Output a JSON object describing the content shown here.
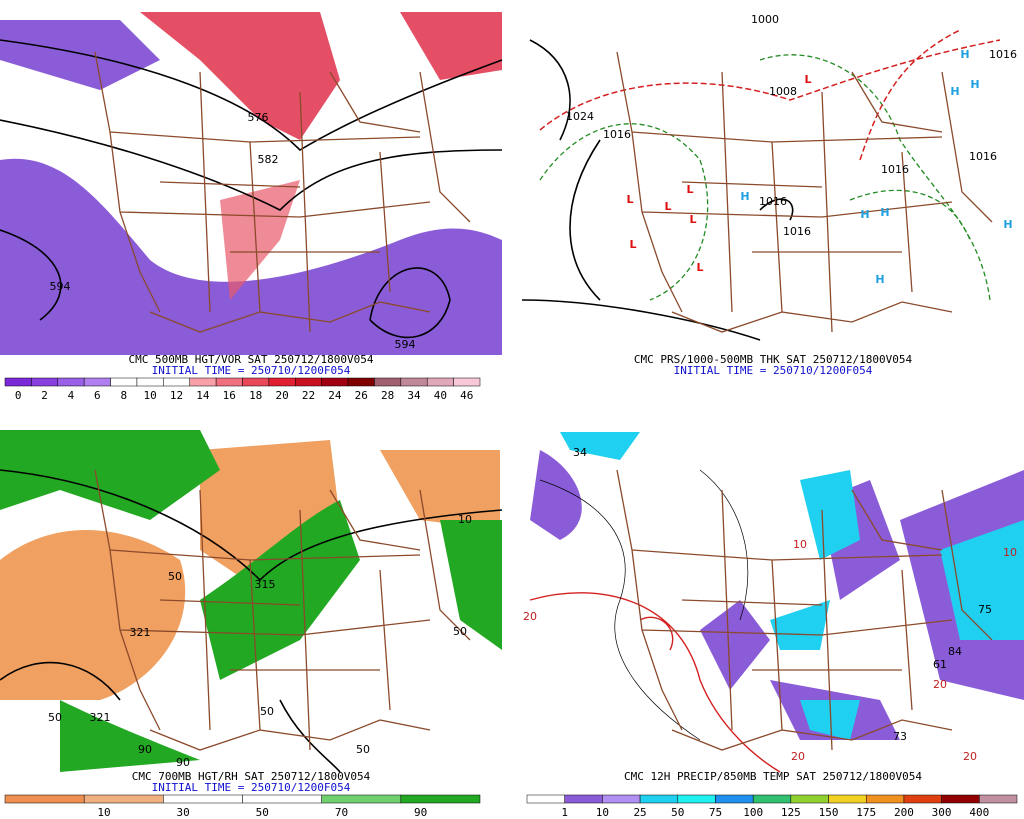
{
  "panels": [
    {
      "title": "CMC 500MB HGT/VOR SAT 250712/1800V054",
      "subtitle": "INITIAL TIME = 250710/1200F054",
      "colorbar": [
        0,
        2,
        4,
        6,
        8,
        10,
        12,
        14,
        16,
        18,
        20,
        22,
        24,
        26,
        28,
        34,
        40,
        46
      ],
      "map_labels": [
        "582",
        "576",
        "594",
        "594"
      ]
    },
    {
      "title": "CMC PRS/1000-500MB THK SAT 250712/1800V054",
      "subtitle": "INITIAL TIME = 250710/1200F054",
      "map_labels": [
        "1000",
        "1008",
        "1024",
        "1016",
        "1016",
        "1016",
        "1016",
        "1016",
        "1016",
        "L",
        "L",
        "L",
        "L",
        "L",
        "L",
        "L",
        "H",
        "H",
        "H",
        "H",
        "H",
        "H",
        "H",
        "H"
      ]
    },
    {
      "title": "CMC 700MB HGT/RH SAT 250712/1800V054",
      "subtitle": "INITIAL TIME = 250710/1200F054",
      "colorbar": [
        10,
        30,
        50,
        70,
        90
      ],
      "map_labels": [
        "321",
        "321",
        "315",
        "50",
        "50",
        "90",
        "90",
        "10",
        "50",
        "50",
        "50"
      ]
    },
    {
      "title": "CMC 12H PRECIP/850MB TEMP SAT 250712/1800V054",
      "colorbar": [
        1,
        10,
        25,
        50,
        75,
        100,
        125,
        150,
        175,
        200,
        300,
        400
      ],
      "map_labels": [
        "20",
        "20",
        "20",
        "10",
        "73",
        "84",
        "61",
        "75",
        "20",
        "10",
        "34"
      ]
    }
  ]
}
